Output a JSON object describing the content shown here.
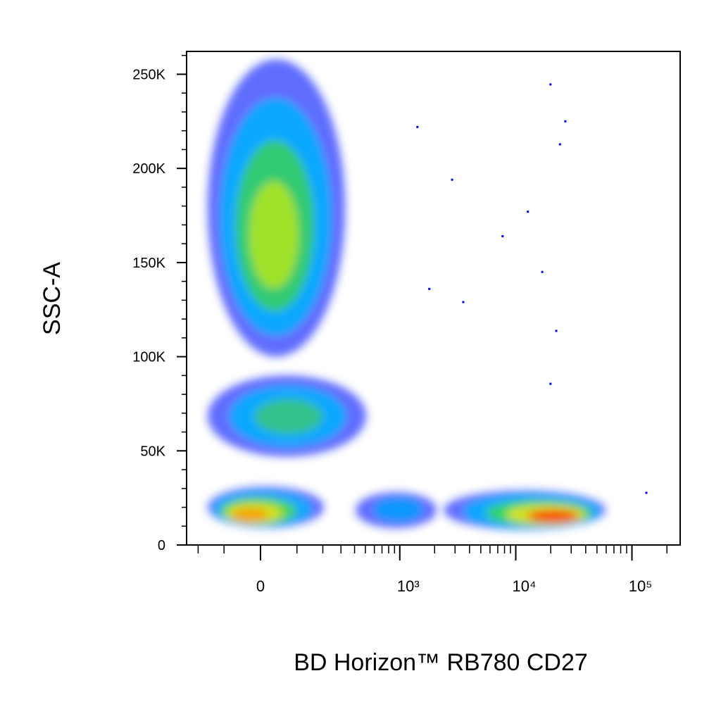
{
  "chart_data": {
    "type": "density_scatter",
    "x_label": "BD Horizon™ RB780 CD27",
    "y_label": "SSC-A",
    "xscale": "asinh",
    "xscale_width": 127,
    "xlim": [
      -260,
      260000
    ],
    "ylim": [
      0,
      262144
    ],
    "xticks": [
      {
        "value": 0,
        "label": "0"
      },
      {
        "value": 1000,
        "label": "10³"
      },
      {
        "value": 10000,
        "label": "10⁴"
      },
      {
        "value": 100000,
        "label": "10⁵"
      }
    ],
    "xminor_ticks": [
      -200,
      -100,
      100,
      200,
      300,
      400,
      500,
      600,
      700,
      800,
      900,
      2000,
      3000,
      4000,
      5000,
      6000,
      7000,
      8000,
      9000,
      20000,
      30000,
      40000,
      50000,
      60000,
      70000,
      80000,
      90000,
      200000
    ],
    "yticks": [
      {
        "value": 0,
        "label": "0"
      },
      {
        "value": 50000,
        "label": "50K"
      },
      {
        "value": 100000,
        "label": "100K"
      },
      {
        "value": 150000,
        "label": "150K"
      },
      {
        "value": 200000,
        "label": "200K"
      },
      {
        "value": 250000,
        "label": "250K"
      }
    ],
    "yminor_ticks": [
      10000,
      20000,
      30000,
      40000,
      60000,
      70000,
      80000,
      90000,
      110000,
      120000,
      130000,
      140000,
      160000,
      170000,
      180000,
      190000,
      210000,
      220000,
      230000,
      240000,
      260000
    ],
    "populations": [
      {
        "x": 31,
        "y": 160000,
        "x_range": [
          -159,
          328
        ],
        "y_range": [
          100000,
          258000
        ],
        "colors": [
          "#1e2cff",
          "#00b4ff",
          "#3cd25a",
          "#b4e61e"
        ]
      },
      {
        "x": 75,
        "y": 68000,
        "x_range": [
          -159,
          508
        ],
        "y_range": [
          47000,
          90000
        ],
        "colors": [
          "#1e2cff",
          "#00b4ff",
          "#3cc878"
        ]
      },
      {
        "x": -36,
        "y": 15000,
        "x_range": [
          -159,
          205
        ],
        "y_range": [
          9000,
          31000
        ],
        "colors": [
          "#1e2cff",
          "#00b4ff",
          "#50dc3c",
          "#e6e614",
          "#ff9600"
        ]
      },
      {
        "x": 1000,
        "y": 19000,
        "x_range": [
          408,
          2080
        ],
        "y_range": [
          9000,
          28000
        ],
        "colors": [
          "#1e2cff",
          "#00a0ff"
        ]
      },
      {
        "x": 23900,
        "y": 14600,
        "x_range": [
          2390,
          59300
        ],
        "y_range": [
          8000,
          29000
        ],
        "colors": [
          "#1e2cff",
          "#00b4ff",
          "#3cdc50",
          "#f0e614",
          "#ff2800"
        ]
      }
    ],
    "outliers": {
      "color": "#0000ff",
      "x": [
        19900,
        26700,
        24000,
        12700,
        7700,
        16900,
        3530,
        22300,
        19900,
        1800,
        2830,
        133000,
        1420
      ],
      "y": [
        244600,
        225000,
        212800,
        177000,
        164000,
        145000,
        129000,
        113700,
        85600,
        136000,
        194000,
        27700,
        222000
      ]
    }
  }
}
